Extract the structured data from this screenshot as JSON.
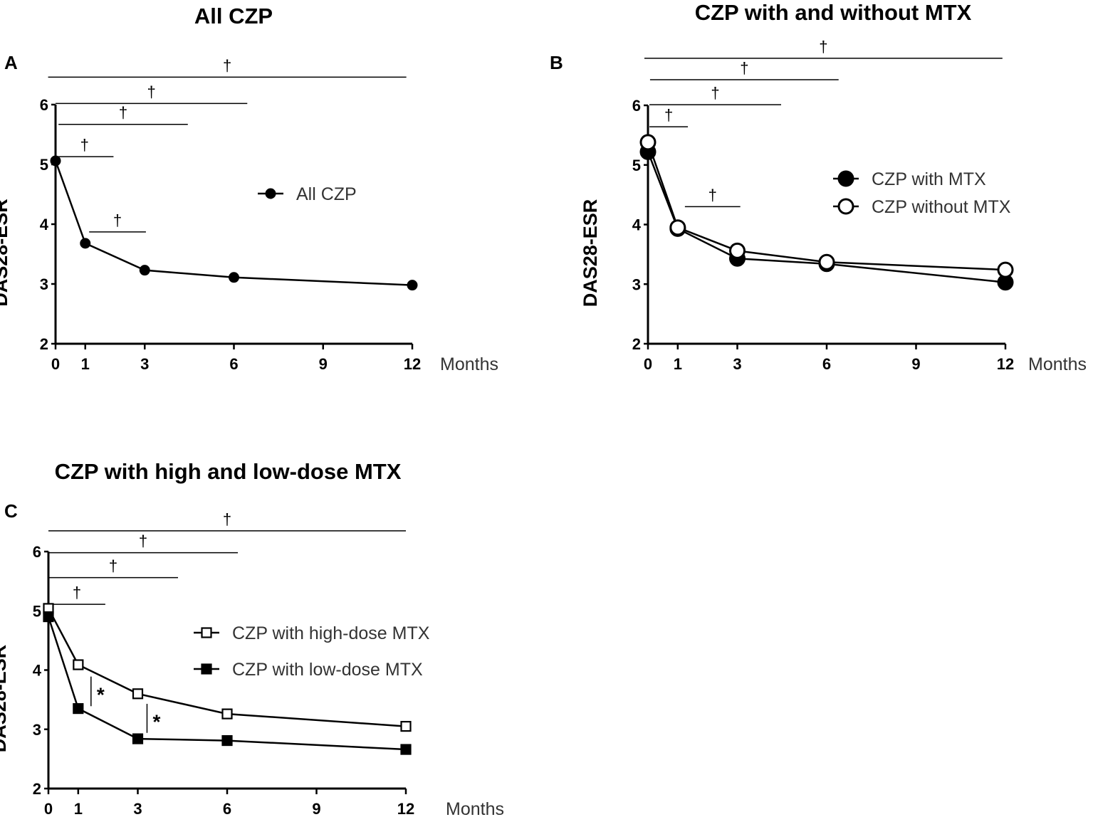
{
  "chart_data": [
    {
      "type": "line",
      "panel": "A",
      "title": "All CZP",
      "xlabel": "Months",
      "ylabel": "DAS28-ESR",
      "xticks": [
        0,
        1,
        3,
        6,
        9,
        12
      ],
      "yticks": [
        2,
        3,
        4,
        5,
        6
      ],
      "xlim": [
        0,
        12
      ],
      "ylim": [
        2,
        6
      ],
      "legend_position": "center-right",
      "series": [
        {
          "name": "All CZP",
          "marker": "filled-circle",
          "x": [
            0,
            1,
            3,
            6,
            12
          ],
          "y": [
            5.06,
            3.68,
            3.23,
            3.11,
            2.98
          ]
        }
      ],
      "annotations": [
        {
          "label": "†",
          "type": "hbar",
          "x": [
            -0.25,
            11.8
          ],
          "y": 6.46
        },
        {
          "label": "†",
          "type": "hbar",
          "x": [
            0,
            6.45
          ],
          "y": 6.02
        },
        {
          "label": "†",
          "type": "hbar",
          "x": [
            0.1,
            4.45
          ],
          "y": 5.67
        },
        {
          "label": "†",
          "type": "hbar",
          "x": [
            0,
            1.95
          ],
          "y": 5.13
        },
        {
          "label": "†",
          "type": "hbar",
          "x": [
            1.13,
            3.04
          ],
          "y": 3.87
        }
      ]
    },
    {
      "type": "line",
      "panel": "B",
      "title": "CZP with and without MTX",
      "xlabel": "Months",
      "ylabel": "DAS28-ESR",
      "xticks": [
        0,
        1,
        3,
        6,
        9,
        12
      ],
      "yticks": [
        2,
        3,
        4,
        5,
        6
      ],
      "xlim": [
        0,
        12
      ],
      "ylim": [
        2,
        6
      ],
      "legend_position": "center-right",
      "series": [
        {
          "name": "CZP with MTX",
          "marker": "filled-circle",
          "x": [
            0,
            1,
            3,
            6,
            12
          ],
          "y": [
            5.22,
            3.93,
            3.43,
            3.34,
            3.03
          ]
        },
        {
          "name": "CZP without MTX",
          "marker": "open-circle",
          "x": [
            0,
            1,
            3,
            6,
            12
          ],
          "y": [
            5.38,
            3.95,
            3.56,
            3.37,
            3.24
          ]
        }
      ],
      "annotations": [
        {
          "label": "†",
          "type": "hbar",
          "x": [
            -0.12,
            11.9
          ],
          "y": 6.79
        },
        {
          "label": "†",
          "type": "hbar",
          "x": [
            0.07,
            6.4
          ],
          "y": 6.43
        },
        {
          "label": "†",
          "type": "hbar",
          "x": [
            0.05,
            4.47
          ],
          "y": 6.01
        },
        {
          "label": "†",
          "type": "hbar",
          "x": [
            0.05,
            1.34
          ],
          "y": 5.64
        },
        {
          "label": "†",
          "type": "hbar",
          "x": [
            1.24,
            3.1
          ],
          "y": 4.3
        }
      ]
    },
    {
      "type": "line",
      "panel": "C",
      "title": "CZP with high and low-dose MTX",
      "xlabel": "Months",
      "ylabel": "DAS28-ESR",
      "xticks": [
        0,
        1,
        3,
        6,
        9,
        12
      ],
      "yticks": [
        2,
        3,
        4,
        5,
        6
      ],
      "xlim": [
        0,
        12
      ],
      "ylim": [
        2,
        6
      ],
      "legend_position": "center-right",
      "series": [
        {
          "name": "CZP with high-dose MTX",
          "marker": "open-square",
          "x": [
            0,
            1,
            3,
            6,
            12
          ],
          "y": [
            5.04,
            4.09,
            3.6,
            3.26,
            3.05
          ]
        },
        {
          "name": "CZP with low-dose MTX",
          "marker": "filled-square",
          "x": [
            0,
            1,
            3,
            6,
            12
          ],
          "y": [
            4.9,
            3.35,
            2.84,
            2.81,
            2.66
          ]
        }
      ],
      "annotations": [
        {
          "label": "†",
          "type": "hbar",
          "x": [
            0,
            12
          ],
          "y": 6.35
        },
        {
          "label": "†",
          "type": "hbar",
          "x": [
            0,
            6.36
          ],
          "y": 5.98
        },
        {
          "label": "†",
          "type": "hbar",
          "x": [
            0,
            4.35
          ],
          "y": 5.56
        },
        {
          "label": "†",
          "type": "hbar",
          "x": [
            0,
            1.91
          ],
          "y": 5.11
        },
        {
          "label": "*",
          "type": "vbar",
          "x": 1.43,
          "y": [
            3.39,
            3.89
          ]
        },
        {
          "label": "*",
          "type": "vbar",
          "x": 3.31,
          "y": [
            2.94,
            3.43
          ]
        }
      ]
    }
  ]
}
